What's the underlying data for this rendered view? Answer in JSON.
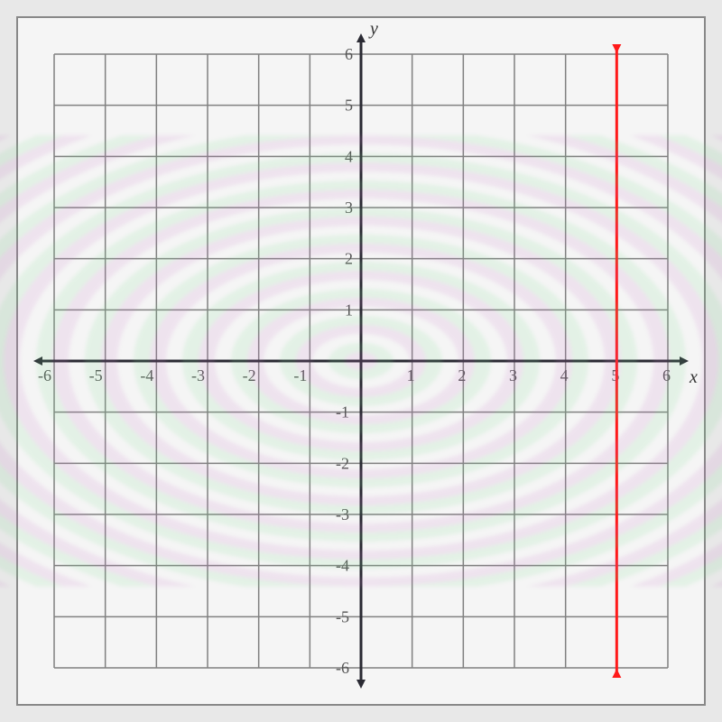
{
  "chart": {
    "type": "line",
    "xlim": [
      -6,
      6
    ],
    "ylim": [
      -6,
      6
    ],
    "xtick_step": 1,
    "ytick_step": 1,
    "xlabel": "x",
    "ylabel": "y",
    "label_fontsize": 20,
    "tick_fontsize": 18,
    "background_color": "#f5f5f5",
    "grid_color": "#808080",
    "axis_color": "#2a2a33",
    "axis_width": 3,
    "grid_width": 1.5,
    "x_ticks": [
      -6,
      -5,
      -4,
      -3,
      -2,
      -1,
      1,
      2,
      3,
      4,
      5,
      6
    ],
    "y_ticks": [
      -6,
      -5,
      -4,
      -3,
      -2,
      -1,
      1,
      2,
      3,
      4,
      5,
      6
    ],
    "series": {
      "type": "vertical_line",
      "x": 5,
      "color": "#ff1a1a",
      "width": 3,
      "arrows": true
    }
  }
}
